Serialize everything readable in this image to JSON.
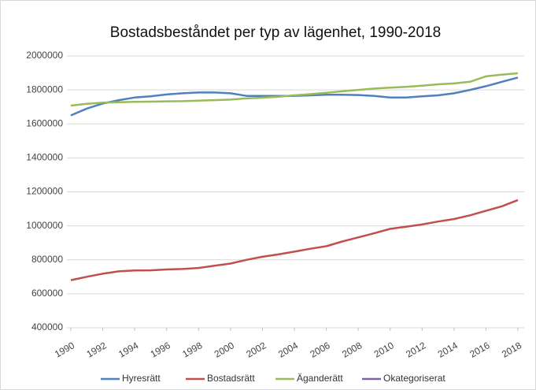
{
  "chart_data": {
    "type": "line",
    "title": "Bostadsbeståndet per typ av lägenhet, 1990-2018",
    "x": [
      1990,
      1991,
      1992,
      1993,
      1994,
      1995,
      1996,
      1997,
      1998,
      1999,
      2000,
      2001,
      2002,
      2003,
      2004,
      2005,
      2006,
      2007,
      2008,
      2009,
      2010,
      2011,
      2012,
      2013,
      2014,
      2015,
      2016,
      2017,
      2018
    ],
    "xlim": [
      1990,
      2018
    ],
    "xticks": [
      1990,
      1992,
      1994,
      1996,
      1998,
      2000,
      2002,
      2004,
      2006,
      2008,
      2010,
      2012,
      2014,
      2016,
      2018
    ],
    "ylim": [
      400000,
      2000000
    ],
    "yticks": [
      400000,
      600000,
      800000,
      1000000,
      1200000,
      1400000,
      1600000,
      1800000,
      2000000
    ],
    "grid": true,
    "legend": "bottom",
    "series": [
      {
        "name": "Hyresrätt",
        "color": "#4f81bd",
        "values": [
          1650000,
          1690000,
          1720000,
          1740000,
          1755000,
          1762000,
          1773000,
          1780000,
          1785000,
          1785000,
          1780000,
          1765000,
          1765000,
          1765000,
          1765000,
          1768000,
          1772000,
          1772000,
          1770000,
          1765000,
          1755000,
          1755000,
          1762000,
          1768000,
          1780000,
          1800000,
          1822000,
          1848000,
          1873000
        ]
      },
      {
        "name": "Bostadsrätt",
        "color": "#c0504d",
        "values": [
          680000,
          700000,
          718000,
          732000,
          737000,
          738000,
          743000,
          746000,
          752000,
          765000,
          778000,
          800000,
          818000,
          832000,
          848000,
          865000,
          880000,
          908000,
          932000,
          956000,
          982000,
          995000,
          1008000,
          1025000,
          1040000,
          1062000,
          1088000,
          1115000,
          1152000
        ]
      },
      {
        "name": "Äganderätt",
        "color": "#9bbb59",
        "values": [
          1708000,
          1718000,
          1725000,
          1728000,
          1730000,
          1731000,
          1733000,
          1734000,
          1737000,
          1740000,
          1743000,
          1750000,
          1754000,
          1760000,
          1768000,
          1775000,
          1783000,
          1792000,
          1800000,
          1808000,
          1813000,
          1818000,
          1825000,
          1833000,
          1838000,
          1848000,
          1880000,
          1890000,
          1898000
        ]
      },
      {
        "name": "Okategoriserat",
        "color": "#8064a2",
        "values": [
          null,
          null,
          null,
          null,
          null,
          null,
          null,
          null,
          null,
          null,
          null,
          null,
          null,
          null,
          null,
          null,
          null,
          null,
          null,
          null,
          null,
          null,
          null,
          null,
          null,
          null,
          null,
          null,
          null
        ]
      }
    ]
  }
}
